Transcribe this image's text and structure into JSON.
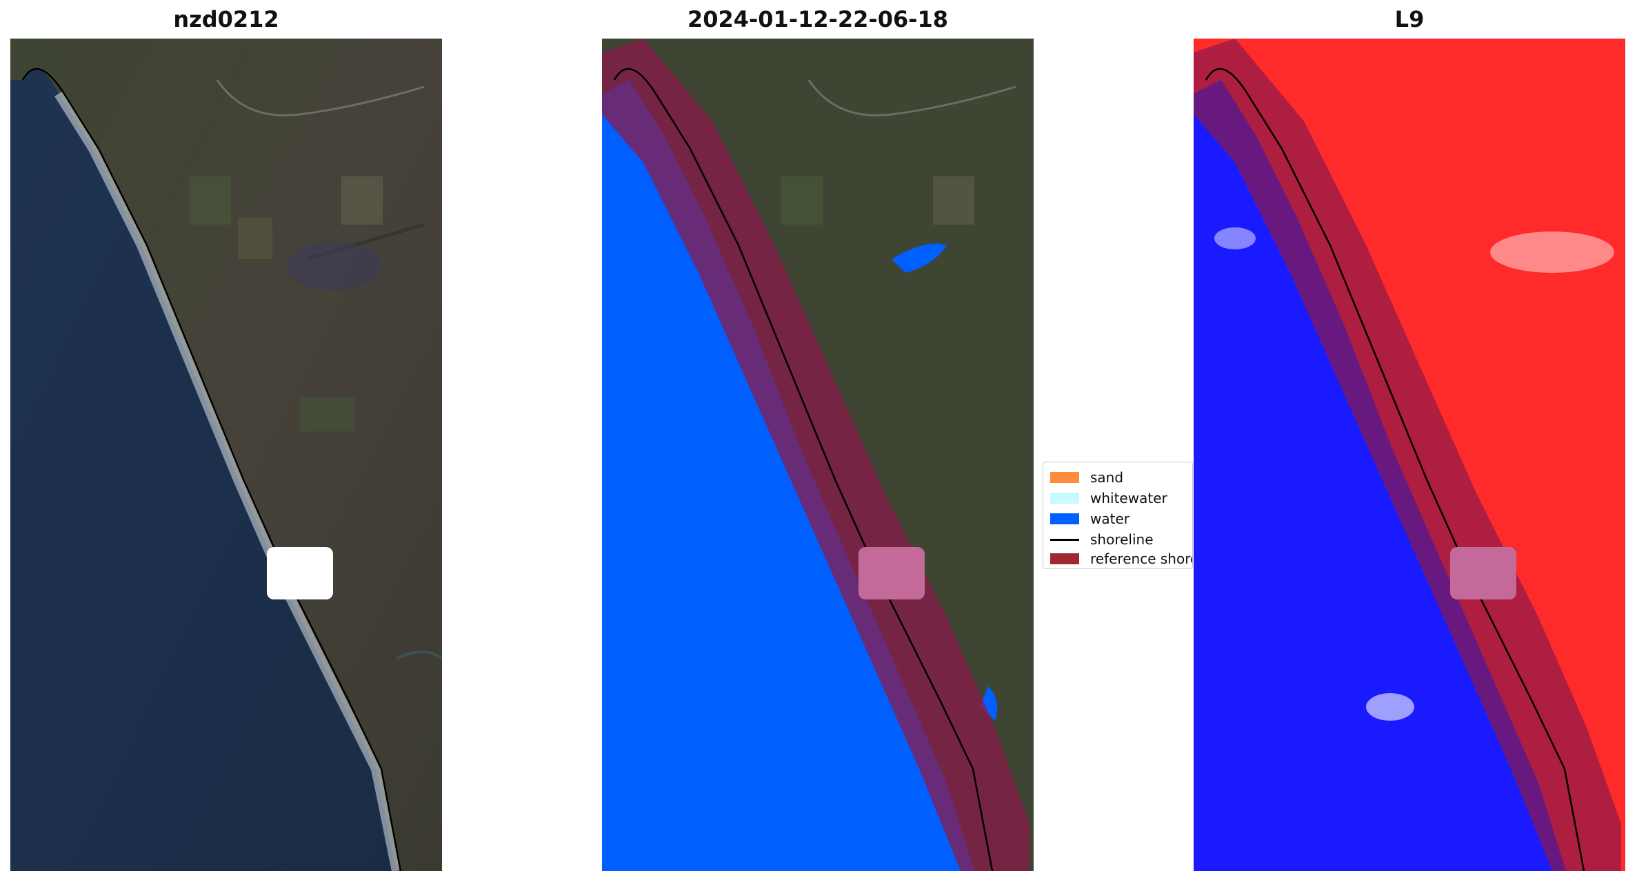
{
  "panels": [
    {
      "title": "nzd0212"
    },
    {
      "title": "2024-01-12-22-06-18"
    },
    {
      "title": "L9"
    }
  ],
  "legend": {
    "items": [
      {
        "label": "sand",
        "color": "#ff8c3a"
      },
      {
        "label": "whitewater",
        "color": "#c8fafa"
      },
      {
        "label": "water",
        "color": "#0060ff"
      },
      {
        "label": "shoreline",
        "color": "#000000"
      },
      {
        "label": "reference shoreline buffer",
        "color": "#9e2a2f"
      }
    ]
  },
  "colors": {
    "land": "#3d4232",
    "ocean": "#1c2f4a",
    "water_class": "#0060ff",
    "buffer": "#8a1a4a",
    "index_water": "#1a1aff",
    "index_land": "#ff2020",
    "cloud_mask": "#ffffff"
  }
}
